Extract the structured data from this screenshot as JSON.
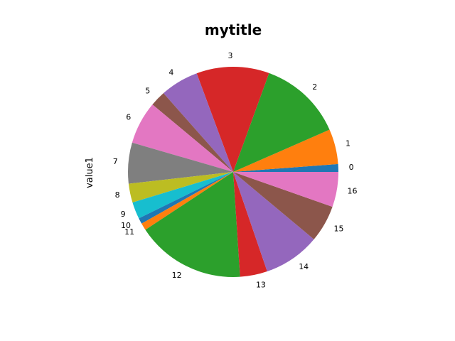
{
  "chart_data": {
    "type": "pie",
    "title": "mytitle",
    "ylabel": "value1",
    "xlabel": "",
    "start_angle_deg": 0,
    "direction": "counterclockwise",
    "categories": [
      "0",
      "1",
      "2",
      "3",
      "4",
      "5",
      "6",
      "7",
      "8",
      "9",
      "10",
      "11",
      "12",
      "13",
      "14",
      "15",
      "16"
    ],
    "values": [
      1.2,
      5.4,
      12.9,
      11.2,
      5.9,
      2.4,
      6.6,
      6.3,
      2.9,
      2.6,
      0.9,
      1.1,
      16.8,
      4.2,
      8.7,
      5.7,
      5.4
    ],
    "colors": [
      "#1f77b4",
      "#ff7f0e",
      "#2ca02c",
      "#d62728",
      "#9467bd",
      "#8c564b",
      "#e377c2",
      "#7f7f7f",
      "#bcbd22",
      "#17becf",
      "#1f77b4",
      "#ff7f0e",
      "#2ca02c",
      "#d62728",
      "#9467bd",
      "#8c564b",
      "#e377c2"
    ]
  }
}
